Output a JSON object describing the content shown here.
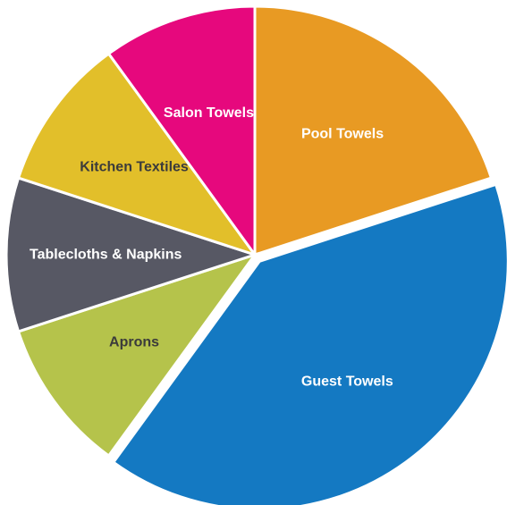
{
  "chart_data": {
    "type": "pie",
    "title": "",
    "start_angle_deg": 0,
    "direction": "clockwise",
    "slices": [
      {
        "label": "Pool Towels",
        "value": 20,
        "color": "#E89A23",
        "label_color": "#ffffff",
        "exploded": false
      },
      {
        "label": "Guest Towels",
        "value": 40,
        "color": "#1479C2",
        "label_color": "#ffffff",
        "exploded": true
      },
      {
        "label": "Aprons",
        "value": 10,
        "color": "#B5C34B",
        "label_color": "#3b3b3b",
        "exploded": false
      },
      {
        "label": "Tablecloths & Napkins",
        "value": 10,
        "color": "#575864",
        "label_color": "#ffffff",
        "exploded": false
      },
      {
        "label": "Kitchen Textiles",
        "value": 10,
        "color": "#E2BF2A",
        "label_color": "#3b3b3b",
        "exploded": false
      },
      {
        "label": "Salon Towels",
        "value": 10,
        "color": "#E6087D",
        "label_color": "#ffffff",
        "exploded": false
      }
    ]
  }
}
